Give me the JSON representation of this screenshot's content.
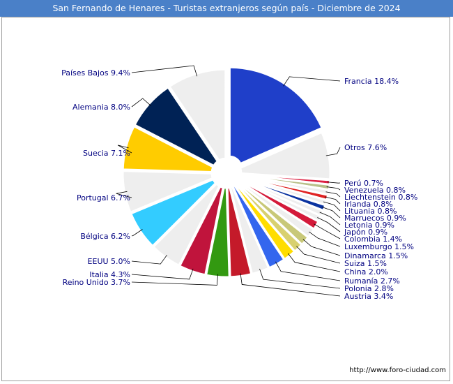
{
  "chart_data": {
    "type": "pie",
    "title": "San Fernando de Henares - Turistas extranjeros según país - Diciembre de 2024",
    "slices": [
      {
        "label": "Francia 18.4%",
        "name": "Francia",
        "value": 18.4,
        "color": "#1f3fc9"
      },
      {
        "label": "Otros 7.6%",
        "name": "Otros",
        "value": 7.6,
        "color": "#eeeeee"
      },
      {
        "label": "Perú 0.7%",
        "name": "Perú",
        "value": 0.7,
        "color": "#dd2244"
      },
      {
        "label": "Venezuela 0.8%",
        "name": "Venezuela",
        "value": 0.8,
        "color": "#b8c08a"
      },
      {
        "label": "Liechtenstein 0.8%",
        "name": "Liechtenstein",
        "value": 0.8,
        "color": "#eeeeee"
      },
      {
        "label": "Irlanda 0.8%",
        "name": "Irlanda",
        "value": 0.8,
        "color": "#e02222"
      },
      {
        "label": "Lituania 0.8%",
        "name": "Lituania",
        "value": 0.8,
        "color": "#eeeeee"
      },
      {
        "label": "Marruecos 0.9%",
        "name": "Marruecos",
        "value": 0.9,
        "color": "#0a33a0"
      },
      {
        "label": "Letonia 0.9%",
        "name": "Letonia",
        "value": 0.9,
        "color": "#eeeeee"
      },
      {
        "label": "Japón 0.9%",
        "name": "Japón",
        "value": 0.9,
        "color": "#eeeeee"
      },
      {
        "label": "Colombia 1.4%",
        "name": "Colombia",
        "value": 1.4,
        "color": "#d41a3a"
      },
      {
        "label": "Luxemburgo 1.5%",
        "name": "Luxemburgo",
        "value": 1.5,
        "color": "#eeeeee"
      },
      {
        "label": "Dinamarca 1.5%",
        "name": "Dinamarca",
        "value": 1.5,
        "color": "#c8c878"
      },
      {
        "label": "Suiza 1.5%",
        "name": "Suiza",
        "value": 1.5,
        "color": "#d8d070"
      },
      {
        "label": "China 2.0%",
        "name": "China",
        "value": 2.0,
        "color": "#ffdd00"
      },
      {
        "label": "Rumanía 2.7%",
        "name": "Rumanía",
        "value": 2.7,
        "color": "#3366ee"
      },
      {
        "label": "Polonia 2.8%",
        "name": "Polonia",
        "value": 2.8,
        "color": "#eeeeee"
      },
      {
        "label": "Austria 3.4%",
        "name": "Austria",
        "value": 3.4,
        "color": "#c41a2a"
      },
      {
        "label": "Reino Unido 3.7%",
        "name": "Reino Unido",
        "value": 3.7,
        "color": "#339911"
      },
      {
        "label": "Italia 4.3%",
        "name": "Italia",
        "value": 4.3,
        "color": "#c0143c"
      },
      {
        "label": "EEUU 5.0%",
        "name": "EEUU",
        "value": 5.0,
        "color": "#eeeeee"
      },
      {
        "label": "Bélgica 6.2%",
        "name": "Bélgica",
        "value": 6.2,
        "color": "#33ccff"
      },
      {
        "label": "Portugal 6.7%",
        "name": "Portugal",
        "value": 6.7,
        "color": "#eeeeee"
      },
      {
        "label": "Suecia 7.1%",
        "name": "Suecia",
        "value": 7.1,
        "color": "#ffcc00"
      },
      {
        "label": "Alemania 8.0%",
        "name": "Alemania",
        "value": 8.0,
        "color": "#002255"
      },
      {
        "label": "Países Bajos 9.4%",
        "name": "Países Bajos",
        "value": 9.4,
        "color": "#eeeeee"
      }
    ]
  },
  "source": "http://www.foro-ciudad.com"
}
